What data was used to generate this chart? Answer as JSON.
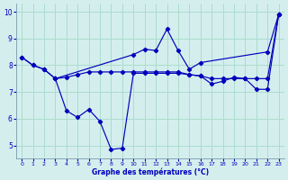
{
  "background_color": "#d4eeee",
  "grid_color": "#aaddcc",
  "line_color": "#0000bb",
  "xlabel": "Graphe des températures (°C)",
  "ylim": [
    4.5,
    10.3
  ],
  "xlim": [
    -0.5,
    23.5
  ],
  "xticks": [
    0,
    1,
    2,
    3,
    4,
    5,
    6,
    7,
    8,
    9,
    10,
    11,
    12,
    13,
    14,
    15,
    16,
    17,
    18,
    19,
    20,
    21,
    22,
    23
  ],
  "yticks": [
    5,
    6,
    7,
    8,
    9,
    10
  ],
  "line1_x": [
    0,
    1,
    2,
    3,
    10,
    11,
    12,
    13,
    14,
    15,
    16,
    22,
    23
  ],
  "line1_y": [
    8.3,
    8.0,
    7.85,
    7.5,
    8.4,
    8.6,
    8.55,
    9.35,
    8.55,
    7.85,
    8.1,
    8.5,
    9.9
  ],
  "line2_x": [
    0,
    1,
    2,
    3,
    4,
    5,
    6,
    7,
    8,
    9,
    10,
    11,
    12,
    13,
    14,
    15,
    16,
    17,
    18,
    19,
    20,
    21,
    22,
    23
  ],
  "line2_y": [
    8.3,
    8.0,
    7.85,
    7.5,
    7.55,
    7.65,
    7.75,
    7.75,
    7.75,
    7.75,
    7.75,
    7.75,
    7.75,
    7.75,
    7.75,
    7.65,
    7.6,
    7.5,
    7.5,
    7.5,
    7.5,
    7.5,
    7.5,
    9.9
  ],
  "line3_x": [
    3,
    4,
    5,
    6,
    7,
    8,
    9,
    10,
    11,
    12,
    13,
    14,
    15,
    16,
    17,
    18,
    19,
    20,
    21,
    22,
    23
  ],
  "line3_y": [
    7.5,
    6.3,
    6.05,
    6.35,
    5.9,
    4.85,
    4.9,
    7.7,
    7.7,
    7.7,
    7.7,
    7.7,
    7.65,
    7.6,
    7.3,
    7.4,
    7.55,
    7.5,
    7.1,
    7.1,
    9.9
  ]
}
